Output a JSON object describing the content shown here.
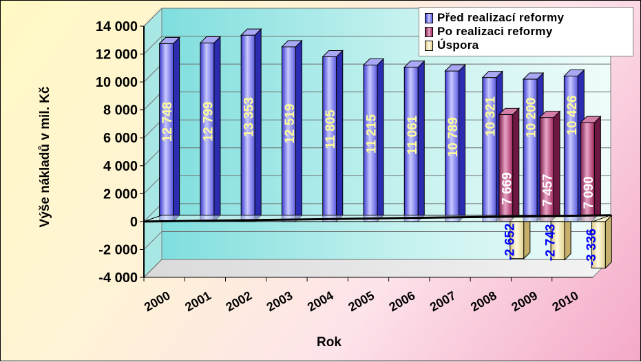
{
  "chart_data": {
    "type": "bar",
    "ylabel": "Výše nákladů v mil. Kč",
    "xlabel": "Rok",
    "ylim": [
      -4000,
      14000
    ],
    "ytick_values": [
      14000,
      12000,
      10000,
      8000,
      6000,
      4000,
      2000,
      0,
      -2000,
      -4000
    ],
    "ytick_labels": [
      "14 000",
      "12 000",
      "10 000",
      "8 000",
      "6 000",
      "4 000",
      "2 000",
      "0",
      "-2 000",
      "-4 000"
    ],
    "categories": [
      "2000",
      "2001",
      "2002",
      "2003",
      "2004",
      "2005",
      "2006",
      "2007",
      "2008",
      "2009",
      "2010"
    ],
    "series": [
      {
        "name": "Před realizací reformy",
        "color": "#7b7bf0",
        "values": [
          12748,
          12799,
          13353,
          12519,
          11805,
          11215,
          11061,
          10789,
          10321,
          10200,
          10426
        ],
        "labels": [
          "12 748",
          "12 799",
          "13 353",
          "12 519",
          "11 805",
          "11 215",
          "11 061",
          "10 789",
          "10 321",
          "10 200",
          "10 426"
        ],
        "label_color": "#ffff99"
      },
      {
        "name": "Po realizaci reformy",
        "color": "#b0306a",
        "values": [
          null,
          null,
          null,
          null,
          null,
          null,
          null,
          null,
          7669,
          7457,
          7090
        ],
        "labels": [
          "",
          "",
          "",
          "",
          "",
          "",
          "",
          "",
          "7 669",
          "7 457",
          "7 090"
        ],
        "label_color": "#ffffff"
      },
      {
        "name": "Úspora",
        "color": "#fff2b8",
        "values": [
          null,
          null,
          null,
          null,
          null,
          null,
          null,
          null,
          -2652,
          -2743,
          -3336
        ],
        "labels": [
          "",
          "",
          "",
          "",
          "",
          "",
          "",
          "",
          "-2 652",
          "-2 743",
          "-3 336"
        ],
        "label_color": "#0000ff"
      }
    ],
    "legend_position": "top-right",
    "grid": true
  }
}
